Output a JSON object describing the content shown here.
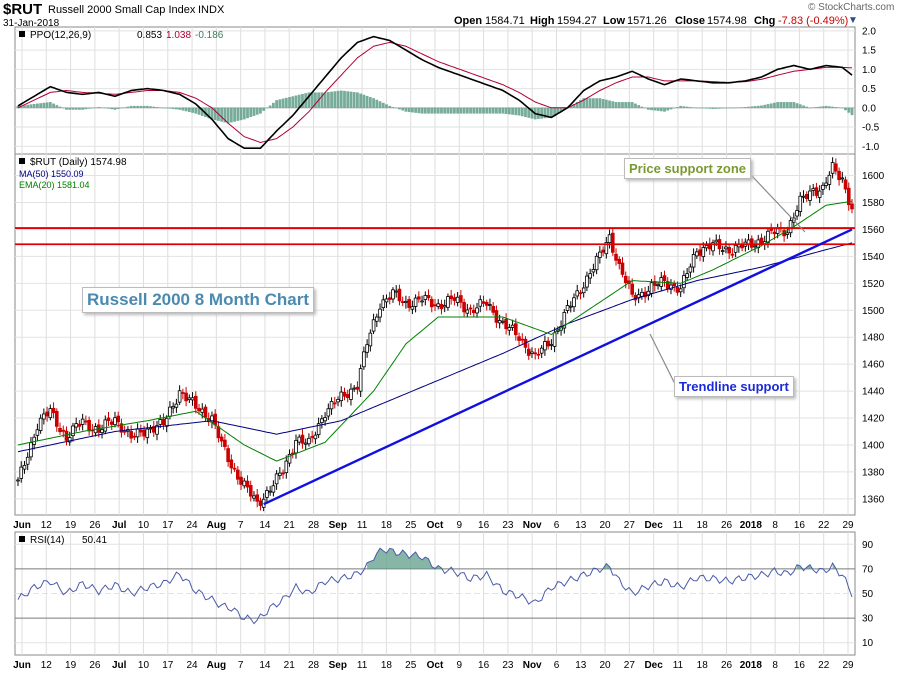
{
  "header": {
    "symbol": "$RUT",
    "name": "Russell 2000 Small Cap Index",
    "exchange": "INDX",
    "date": "31-Jan-2018",
    "ohlc": {
      "open_label": "Open",
      "open": "1584.71",
      "high_label": "High",
      "high": "1594.27",
      "low_label": "Low",
      "low": "1571.26",
      "close_label": "Close",
      "close": "1574.98",
      "chg_label": "Chg",
      "chg": "-7.83 (-0.49%)"
    },
    "copyright": "© StockCharts.com"
  },
  "annotations": {
    "chart_title": "Russell 2000 8 Month Chart",
    "support_zone": "Price support zone",
    "trendline": "Trendline support"
  },
  "colors": {
    "up": "#000000",
    "down": "#cc0000",
    "ma50": "#000080",
    "ema20": "#008000",
    "ppo": "#000000",
    "signal": "#b00030",
    "hist": "#5f9e8a",
    "support": "#e00000",
    "trendline": "#1010e0",
    "title_text": "#4a8ab0",
    "zone_text": "#7a9a30",
    "trend_text": "#1a2ad8"
  },
  "chart_data": [
    {
      "type": "line",
      "panel": "PPO",
      "label": "PPO(12,26,9)",
      "readout": {
        "ppo": "0.853",
        "signal": "1.038",
        "hist": "-0.186"
      },
      "ylim": [
        -1.2,
        2.1
      ],
      "y_ticks": [
        "2.0",
        "1.5",
        "1.0",
        "0.5",
        "0.0",
        "-0.5",
        "-1.0"
      ],
      "series": [
        {
          "name": "PPO",
          "points": [
            [
              0,
              0.05
            ],
            [
              5,
              0.3
            ],
            [
              10,
              0.55
            ],
            [
              15,
              0.4
            ],
            [
              20,
              0.35
            ],
            [
              25,
              0.4
            ],
            [
              30,
              0.3
            ],
            [
              35,
              0.45
            ],
            [
              40,
              0.5
            ],
            [
              45,
              0.45
            ],
            [
              50,
              0.35
            ],
            [
              55,
              0.1
            ],
            [
              60,
              -0.3
            ],
            [
              65,
              -0.8
            ],
            [
              70,
              -1.05
            ],
            [
              75,
              -1.05
            ],
            [
              80,
              -0.6
            ],
            [
              85,
              -0.2
            ],
            [
              90,
              0.3
            ],
            [
              95,
              0.8
            ],
            [
              100,
              1.3
            ],
            [
              105,
              1.7
            ],
            [
              110,
              1.85
            ],
            [
              115,
              1.75
            ],
            [
              120,
              1.5
            ],
            [
              125,
              1.25
            ],
            [
              130,
              1.05
            ],
            [
              135,
              0.9
            ],
            [
              140,
              0.75
            ],
            [
              145,
              0.6
            ],
            [
              150,
              0.45
            ],
            [
              155,
              0.2
            ],
            [
              160,
              -0.15
            ],
            [
              165,
              -0.25
            ],
            [
              170,
              0.0
            ],
            [
              175,
              0.45
            ],
            [
              180,
              0.7
            ],
            [
              185,
              0.8
            ],
            [
              190,
              0.95
            ],
            [
              195,
              0.75
            ],
            [
              200,
              0.6
            ],
            [
              205,
              0.75
            ],
            [
              210,
              0.7
            ],
            [
              215,
              0.65
            ],
            [
              220,
              0.65
            ],
            [
              225,
              0.7
            ],
            [
              230,
              0.8
            ],
            [
              235,
              1.0
            ],
            [
              240,
              1.1
            ],
            [
              245,
              1.0
            ],
            [
              250,
              1.1
            ],
            [
              255,
              1.05
            ],
            [
              258,
              0.85
            ]
          ]
        },
        {
          "name": "Signal",
          "points": [
            [
              0,
              0.0
            ],
            [
              5,
              0.2
            ],
            [
              10,
              0.4
            ],
            [
              15,
              0.45
            ],
            [
              20,
              0.4
            ],
            [
              25,
              0.38
            ],
            [
              30,
              0.35
            ],
            [
              35,
              0.4
            ],
            [
              40,
              0.45
            ],
            [
              45,
              0.45
            ],
            [
              50,
              0.4
            ],
            [
              55,
              0.25
            ],
            [
              60,
              0.0
            ],
            [
              65,
              -0.4
            ],
            [
              70,
              -0.75
            ],
            [
              75,
              -0.9
            ],
            [
              80,
              -0.8
            ],
            [
              85,
              -0.5
            ],
            [
              90,
              -0.1
            ],
            [
              95,
              0.4
            ],
            [
              100,
              0.85
            ],
            [
              105,
              1.3
            ],
            [
              110,
              1.6
            ],
            [
              115,
              1.7
            ],
            [
              120,
              1.6
            ],
            [
              125,
              1.4
            ],
            [
              130,
              1.2
            ],
            [
              135,
              1.05
            ],
            [
              140,
              0.9
            ],
            [
              145,
              0.75
            ],
            [
              150,
              0.6
            ],
            [
              155,
              0.4
            ],
            [
              160,
              0.15
            ],
            [
              165,
              0.0
            ],
            [
              170,
              0.0
            ],
            [
              175,
              0.2
            ],
            [
              180,
              0.45
            ],
            [
              185,
              0.65
            ],
            [
              190,
              0.8
            ],
            [
              195,
              0.8
            ],
            [
              200,
              0.7
            ],
            [
              205,
              0.7
            ],
            [
              210,
              0.7
            ],
            [
              215,
              0.68
            ],
            [
              220,
              0.66
            ],
            [
              225,
              0.68
            ],
            [
              230,
              0.74
            ],
            [
              235,
              0.85
            ],
            [
              240,
              0.95
            ],
            [
              245,
              1.0
            ],
            [
              250,
              1.05
            ],
            [
              255,
              1.05
            ],
            [
              258,
              1.04
            ]
          ]
        }
      ]
    },
    {
      "type": "bar",
      "panel": "Price",
      "label": "$RUT (Daily) 1574.98",
      "legend": [
        "MA(50) 1550.09",
        "EMA(20) 1581.04"
      ],
      "ylim": [
        1348,
        1616
      ],
      "y_ticks": [
        "1600",
        "1580",
        "1560",
        "1540",
        "1520",
        "1500",
        "1480",
        "1460",
        "1440",
        "1420",
        "1400",
        "1380",
        "1360"
      ],
      "x_ticks": [
        "Jun",
        "12",
        "19",
        "26",
        "Jul",
        "10",
        "17",
        "24",
        "Aug",
        "7",
        "14",
        "21",
        "28",
        "Sep",
        "11",
        "18",
        "25",
        "Oct",
        "9",
        "16",
        "23",
        "Nov",
        "6",
        "13",
        "20",
        "27",
        "Dec",
        "11",
        "18",
        "26",
        "2018",
        "8",
        "16",
        "22",
        "29"
      ],
      "close_anchors": [
        [
          0,
          1372
        ],
        [
          6,
          1415
        ],
        [
          10,
          1425
        ],
        [
          15,
          1405
        ],
        [
          20,
          1418
        ],
        [
          25,
          1410
        ],
        [
          30,
          1420
        ],
        [
          35,
          1405
        ],
        [
          40,
          1412
        ],
        [
          45,
          1415
        ],
        [
          50,
          1440
        ],
        [
          55,
          1428
        ],
        [
          60,
          1420
        ],
        [
          63,
          1400
        ],
        [
          66,
          1385
        ],
        [
          70,
          1370
        ],
        [
          74,
          1356
        ],
        [
          78,
          1368
        ],
        [
          82,
          1380
        ],
        [
          86,
          1405
        ],
        [
          90,
          1400
        ],
        [
          95,
          1425
        ],
        [
          100,
          1435
        ],
        [
          105,
          1445
        ],
        [
          108,
          1475
        ],
        [
          112,
          1505
        ],
        [
          116,
          1512
        ],
        [
          120,
          1505
        ],
        [
          125,
          1508
        ],
        [
          130,
          1504
        ],
        [
          135,
          1508
        ],
        [
          140,
          1500
        ],
        [
          145,
          1505
        ],
        [
          150,
          1490
        ],
        [
          155,
          1480
        ],
        [
          160,
          1465
        ],
        [
          165,
          1478
        ],
        [
          170,
          1500
        ],
        [
          175,
          1520
        ],
        [
          180,
          1540
        ],
        [
          183,
          1555
        ],
        [
          186,
          1532
        ],
        [
          190,
          1510
        ],
        [
          195,
          1515
        ],
        [
          200,
          1522
        ],
        [
          205,
          1515
        ],
        [
          210,
          1545
        ],
        [
          215,
          1548
        ],
        [
          220,
          1545
        ],
        [
          225,
          1548
        ],
        [
          230,
          1552
        ],
        [
          234,
          1558
        ],
        [
          238,
          1560
        ],
        [
          242,
          1580
        ],
        [
          246,
          1590
        ],
        [
          249,
          1590
        ],
        [
          252,
          1605
        ],
        [
          255,
          1598
        ],
        [
          258,
          1575
        ]
      ],
      "ma50_anchors": [
        [
          0,
          1395
        ],
        [
          30,
          1410
        ],
        [
          60,
          1418
        ],
        [
          80,
          1408
        ],
        [
          100,
          1418
        ],
        [
          130,
          1448
        ],
        [
          150,
          1468
        ],
        [
          170,
          1490
        ],
        [
          190,
          1508
        ],
        [
          210,
          1522
        ],
        [
          230,
          1532
        ],
        [
          250,
          1545
        ],
        [
          258,
          1550
        ]
      ],
      "ema20_anchors": [
        [
          0,
          1400
        ],
        [
          20,
          1410
        ],
        [
          40,
          1418
        ],
        [
          55,
          1425
        ],
        [
          70,
          1400
        ],
        [
          80,
          1388
        ],
        [
          95,
          1402
        ],
        [
          110,
          1440
        ],
        [
          120,
          1475
        ],
        [
          130,
          1495
        ],
        [
          150,
          1495
        ],
        [
          165,
          1482
        ],
        [
          175,
          1498
        ],
        [
          190,
          1522
        ],
        [
          205,
          1520
        ],
        [
          215,
          1530
        ],
        [
          230,
          1548
        ],
        [
          240,
          1562
        ],
        [
          250,
          1578
        ],
        [
          258,
          1581
        ]
      ],
      "support_lines": [
        1561,
        1549
      ],
      "trendline": [
        [
          76,
          1356
        ],
        [
          258,
          1560
        ]
      ]
    },
    {
      "type": "line",
      "panel": "RSI",
      "label": "RSI(14)",
      "readout": "50.41",
      "ylim": [
        0,
        100
      ],
      "y_ticks": [
        "90",
        "70",
        "50",
        "30",
        "10"
      ],
      "points": [
        [
          0,
          45
        ],
        [
          5,
          55
        ],
        [
          10,
          60
        ],
        [
          15,
          50
        ],
        [
          20,
          58
        ],
        [
          25,
          52
        ],
        [
          30,
          57
        ],
        [
          35,
          50
        ],
        [
          40,
          55
        ],
        [
          45,
          58
        ],
        [
          50,
          66
        ],
        [
          55,
          52
        ],
        [
          60,
          45
        ],
        [
          63,
          40
        ],
        [
          66,
          38
        ],
        [
          70,
          30
        ],
        [
          74,
          28
        ],
        [
          78,
          38
        ],
        [
          82,
          45
        ],
        [
          86,
          55
        ],
        [
          90,
          50
        ],
        [
          95,
          60
        ],
        [
          100,
          62
        ],
        [
          105,
          66
        ],
        [
          108,
          72
        ],
        [
          110,
          80
        ],
        [
          113,
          86
        ],
        [
          116,
          84
        ],
        [
          120,
          82
        ],
        [
          125,
          80
        ],
        [
          128,
          74
        ],
        [
          130,
          70
        ],
        [
          135,
          68
        ],
        [
          140,
          62
        ],
        [
          145,
          65
        ],
        [
          150,
          52
        ],
        [
          155,
          48
        ],
        [
          160,
          42
        ],
        [
          165,
          55
        ],
        [
          170,
          60
        ],
        [
          175,
          65
        ],
        [
          180,
          70
        ],
        [
          183,
          72
        ],
        [
          186,
          60
        ],
        [
          190,
          50
        ],
        [
          195,
          56
        ],
        [
          200,
          60
        ],
        [
          205,
          55
        ],
        [
          210,
          63
        ],
        [
          215,
          62
        ],
        [
          220,
          60
        ],
        [
          225,
          63
        ],
        [
          230,
          65
        ],
        [
          234,
          68
        ],
        [
          238,
          66
        ],
        [
          242,
          72
        ],
        [
          246,
          70
        ],
        [
          249,
          68
        ],
        [
          252,
          72
        ],
        [
          255,
          65
        ],
        [
          258,
          50
        ]
      ]
    }
  ]
}
